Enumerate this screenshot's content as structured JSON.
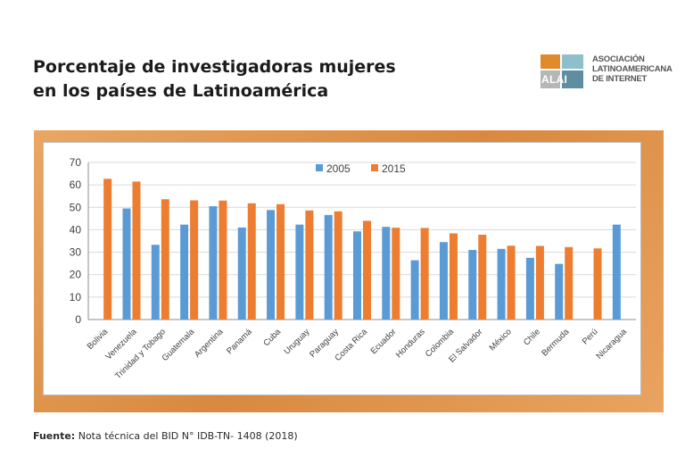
{
  "header": {
    "title_line1": "Porcentaje de investigadoras mujeres",
    "title_line2": "en los países de Latinoamérica"
  },
  "logo": {
    "mark": "ALAI",
    "line1": "ASOCIACIÓN",
    "line2": "LATINOAMERICANA",
    "line3": "DE INTERNET",
    "colors": [
      "#e08a2c",
      "#8dbfcc",
      "#b6b6b6",
      "#5e8ea0"
    ]
  },
  "footer": {
    "source_label": "Fuente:",
    "source_text": " Nota técnica del BID N° IDB-TN- 1408 (2018)"
  },
  "chart_data": {
    "type": "bar",
    "categories": [
      "Bolivia",
      "Venezuela",
      "Trinidad y Tobago",
      "Guatemala",
      "Argentina",
      "Panamá",
      "Cuba",
      "Uruguay",
      "Paraguay",
      "Costa Rica",
      "Ecuador",
      "Honduras",
      "Colombia",
      "El Salvador",
      "México",
      "Chile",
      "Bermuda",
      "Perú",
      "Nicaragua"
    ],
    "series": [
      {
        "name": "2005",
        "color": "#5b9bd5",
        "values": [
          null,
          49.5,
          33.3,
          42.3,
          50.5,
          41,
          48.8,
          42.3,
          46.6,
          39.3,
          41.3,
          26.4,
          34.5,
          31,
          31.5,
          27.5,
          24.8,
          null,
          42.3
        ]
      },
      {
        "name": "2015",
        "color": "#ed7d31",
        "values": [
          62.7,
          61.5,
          53.6,
          53.1,
          53,
          51.8,
          51.4,
          48.6,
          48.2,
          44,
          40.9,
          40.8,
          38.4,
          37.8,
          32.9,
          32.8,
          32.3,
          31.7,
          null
        ]
      }
    ],
    "yticks": [
      "0",
      "10",
      "20",
      "30",
      "40",
      "50",
      "60",
      "70"
    ],
    "ylim": [
      0,
      70
    ],
    "title": "",
    "xlabel": "",
    "ylabel": "",
    "grid": true,
    "legend_position": "top-center"
  }
}
